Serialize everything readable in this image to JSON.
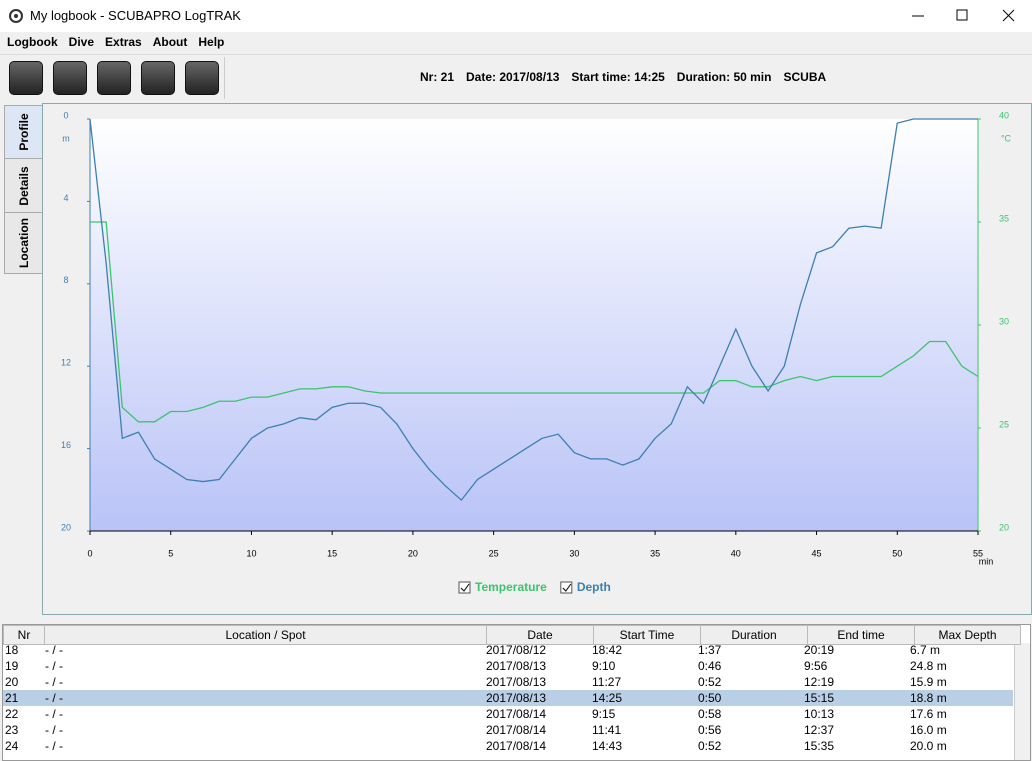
{
  "window": {
    "title": "My logbook - SCUBAPRO LogTRAK"
  },
  "menu": [
    "Logbook",
    "Dive",
    "Extras",
    "About",
    "Help"
  ],
  "info": [
    "Nr: 21",
    "Date: 2017/08/13",
    "Start time: 14:25",
    "Duration: 50 min",
    "SCUBA"
  ],
  "tabs": [
    "Profile",
    "Details",
    "Location"
  ],
  "chart_data": {
    "type": "line",
    "xlabel": "min",
    "ylabel": "m",
    "y2label": "°C",
    "x": [
      0,
      1,
      2,
      3,
      4,
      5,
      6,
      7,
      8,
      9,
      10,
      11,
      12,
      13,
      14,
      15,
      16,
      17,
      18,
      19,
      20,
      21,
      22,
      23,
      24,
      25,
      26,
      27,
      28,
      29,
      30,
      31,
      32,
      33,
      34,
      35,
      36,
      37,
      38,
      39,
      40,
      41,
      42,
      43,
      44,
      45,
      46,
      47,
      48,
      49,
      50,
      51,
      52,
      53,
      54,
      55
    ],
    "xlim": [
      0,
      55
    ],
    "xticks": [
      0,
      5,
      10,
      15,
      20,
      25,
      30,
      35,
      40,
      45,
      50,
      55
    ],
    "ylim": [
      20,
      0
    ],
    "yticks": [
      0,
      4,
      8,
      12,
      16,
      20
    ],
    "y2lim": [
      20,
      40
    ],
    "y2ticks": [
      20,
      25,
      30,
      35,
      40
    ],
    "series": [
      {
        "name": "Temperature",
        "color": "#3cc36e",
        "axis": "y2",
        "values": [
          35,
          35,
          26,
          25.3,
          25.3,
          25.8,
          25.8,
          26,
          26.3,
          26.3,
          26.5,
          26.5,
          26.7,
          26.9,
          26.9,
          27,
          27,
          26.8,
          26.7,
          26.7,
          26.7,
          26.7,
          26.7,
          26.7,
          26.7,
          26.7,
          26.7,
          26.7,
          26.7,
          26.7,
          26.7,
          26.7,
          26.7,
          26.7,
          26.7,
          26.7,
          26.7,
          26.7,
          26.7,
          27.3,
          27.3,
          27,
          27,
          27.3,
          27.5,
          27.3,
          27.5,
          27.5,
          27.5,
          27.5,
          28,
          28.5,
          29.2,
          29.2,
          28,
          27.5
        ]
      },
      {
        "name": "Depth",
        "color": "#3d7fb0",
        "values": [
          0,
          7,
          15.5,
          15.2,
          16.5,
          17,
          17.5,
          17.6,
          17.5,
          16.5,
          15.5,
          15,
          14.8,
          14.5,
          14.6,
          14,
          13.8,
          13.8,
          14,
          14.8,
          16,
          17,
          17.8,
          18.5,
          17.5,
          17,
          16.5,
          16,
          15.5,
          15.3,
          16.2,
          16.5,
          16.5,
          16.8,
          16.5,
          15.5,
          14.8,
          13,
          13.8,
          12,
          10.2,
          12,
          13.2,
          12,
          9,
          6.5,
          6.2,
          5.3,
          5.2,
          5.3,
          0.2,
          0,
          0,
          0,
          0,
          0
        ]
      }
    ]
  },
  "table": {
    "columns": [
      "Nr",
      "Location / Spot",
      "Date",
      "Start Time",
      "Duration",
      "End time",
      "Max Depth"
    ],
    "rows": [
      [
        "18",
        "- / -",
        "2017/08/12",
        "18:42",
        "1:37",
        "20:19",
        "6.7 m"
      ],
      [
        "19",
        "- / -",
        "2017/08/13",
        "9:10",
        "0:46",
        "9:56",
        "24.8 m"
      ],
      [
        "20",
        "- / -",
        "2017/08/13",
        "11:27",
        "0:52",
        "12:19",
        "15.9 m"
      ],
      [
        "21",
        "- / -",
        "2017/08/13",
        "14:25",
        "0:50",
        "15:15",
        "18.8 m"
      ],
      [
        "22",
        "- / -",
        "2017/08/14",
        "9:15",
        "0:58",
        "10:13",
        "17.6 m"
      ],
      [
        "23",
        "- / -",
        "2017/08/14",
        "11:41",
        "0:56",
        "12:37",
        "16.0 m"
      ],
      [
        "24",
        "- / -",
        "2017/08/14",
        "14:43",
        "0:52",
        "15:35",
        "20.0 m"
      ]
    ],
    "selected": 3
  }
}
